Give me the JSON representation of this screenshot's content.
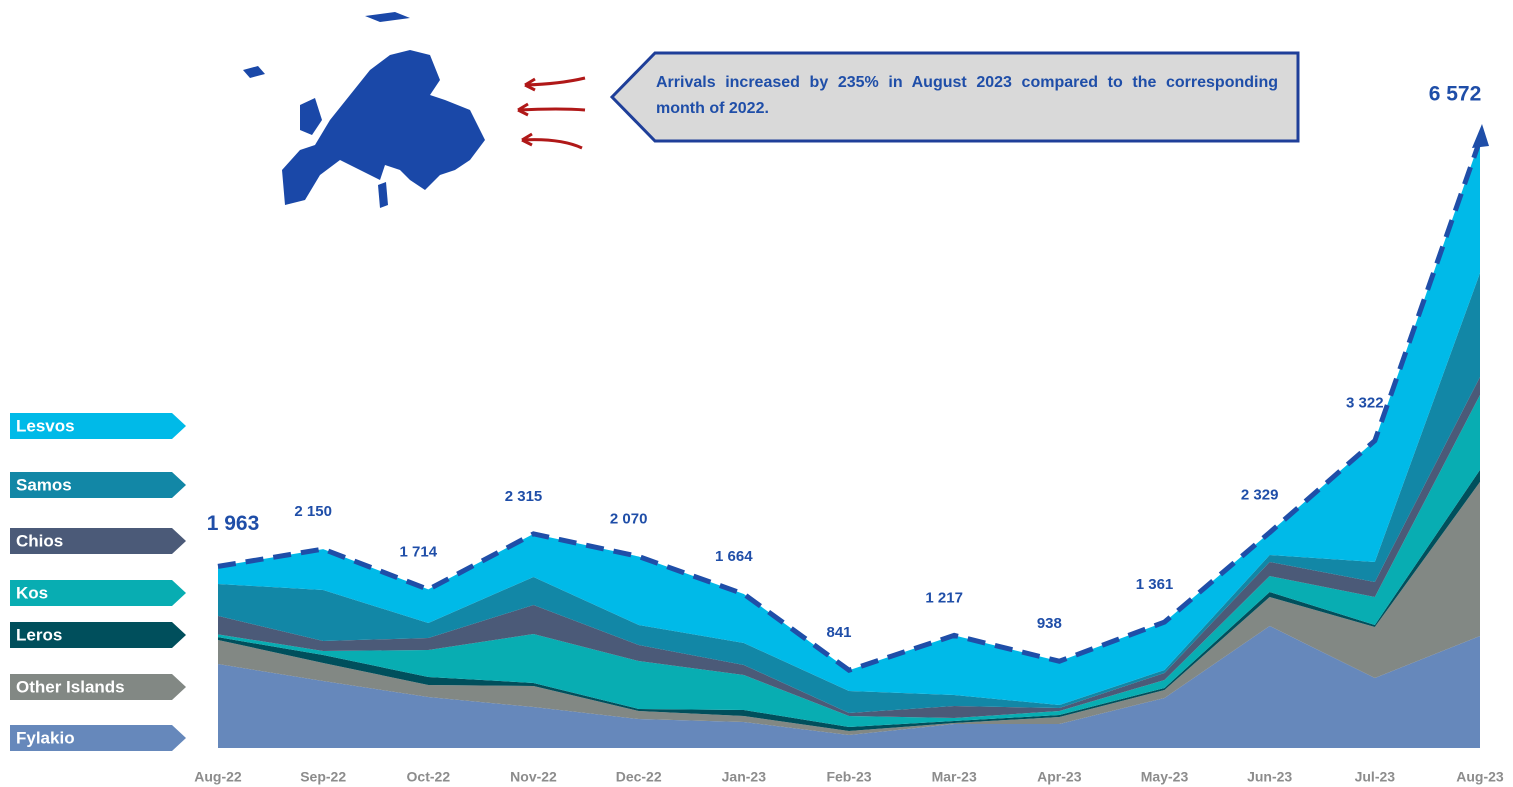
{
  "chart_data": {
    "type": "stacked-area",
    "annotation": "Arrivals increased by 235% in August 2023 compared to the corresponding month of 2022.",
    "categories": [
      "Aug-22",
      "Sep-22",
      "Oct-22",
      "Nov-22",
      "Dec-22",
      "Jan-23",
      "Feb-23",
      "Mar-23",
      "Apr-23",
      "May-23",
      "Jun-23",
      "Jul-23",
      "Aug-23"
    ],
    "series": [
      {
        "name": "Fylakio",
        "color": "#6688bb",
        "values": [
          908,
          724,
          551,
          443,
          313,
          281,
          140,
          259,
          259,
          541,
          1319,
          757,
          1211
        ]
      },
      {
        "name": "Other Islands",
        "color": "#828884",
        "values": [
          260,
          195,
          130,
          227,
          87,
          65,
          44,
          11,
          76,
          86,
          313,
          551,
          1665
        ]
      },
      {
        "name": "Leros",
        "color": "#004f5c",
        "values": [
          30,
          86,
          87,
          33,
          22,
          65,
          43,
          22,
          22,
          22,
          54,
          22,
          130
        ]
      },
      {
        "name": "Kos",
        "color": "#08adb2",
        "values": [
          30,
          44,
          291,
          529,
          518,
          378,
          119,
          32,
          43,
          86,
          173,
          302,
          811
        ]
      },
      {
        "name": "Chios",
        "color": "#4b5a78",
        "values": [
          200,
          108,
          130,
          314,
          173,
          108,
          32,
          130,
          32,
          76,
          152,
          163,
          194
        ]
      },
      {
        "name": "Samos",
        "color": "#1287a6",
        "values": [
          345,
          551,
          162,
          303,
          217,
          238,
          238,
          119,
          33,
          32,
          75,
          216,
          1124
        ]
      },
      {
        "name": "Lesvos",
        "color": "#00bae8",
        "values": [
          190,
          442,
          363,
          466,
          740,
          529,
          225,
          644,
          473,
          518,
          243,
          1311,
          1437
        ]
      }
    ],
    "totals": {
      "color": "#1f4ea8",
      "values": [
        1963,
        2150,
        1714,
        2315,
        2070,
        1664,
        841,
        1217,
        938,
        1361,
        2329,
        3322,
        6572
      ],
      "value_labels": [
        "1 963",
        "2 150",
        "1 714",
        "2 315",
        "2 070",
        "1 664",
        "841",
        "1 217",
        "938",
        "1 361",
        "2 329",
        "3 322",
        "6 572"
      ]
    }
  }
}
